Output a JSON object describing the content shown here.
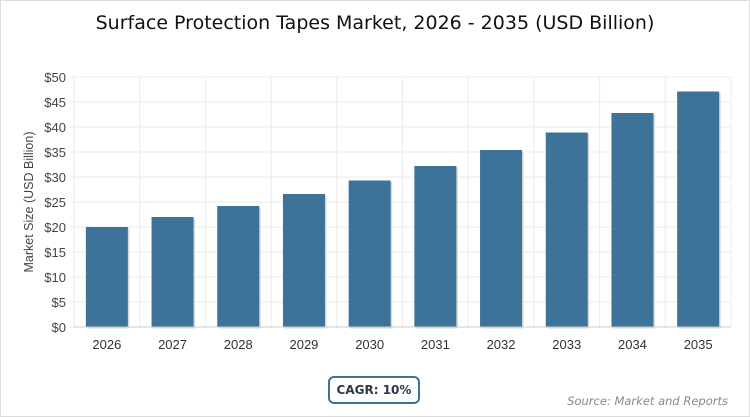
{
  "chart_data": {
    "type": "bar",
    "title": "Surface Protection Tapes Market, 2026 - 2035 (USD Billion)",
    "xlabel": "",
    "ylabel": "Market Size (USD Billion)",
    "categories": [
      "2026",
      "2027",
      "2028",
      "2029",
      "2030",
      "2031",
      "2032",
      "2033",
      "2034",
      "2035"
    ],
    "values": [
      20.0,
      22.0,
      24.2,
      26.6,
      29.3,
      32.2,
      35.4,
      38.9,
      42.8,
      47.1
    ],
    "ylim": [
      0,
      50
    ],
    "yticks": [
      "$0",
      "$5",
      "$10",
      "$15",
      "$20",
      "$25",
      "$30",
      "$35",
      "$40",
      "$45",
      "$50"
    ],
    "grid": true,
    "bar_color": "#3d7299"
  },
  "annotations": {
    "cagr": "CAGR: 10%",
    "source": "Source: Market and Reports"
  }
}
